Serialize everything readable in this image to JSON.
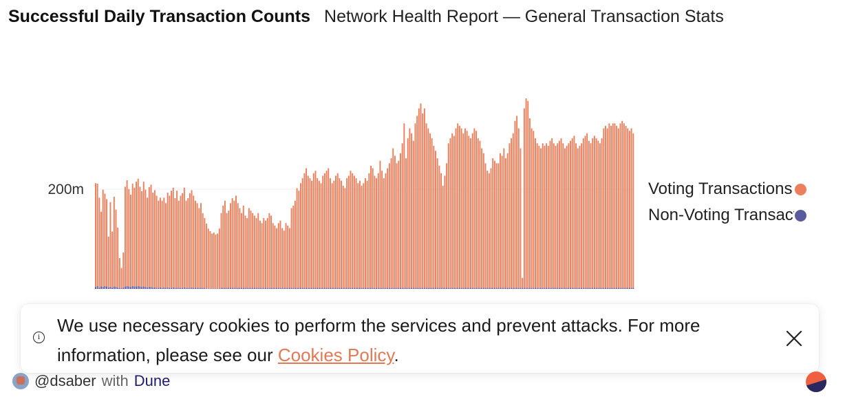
{
  "header": {
    "title": "Successful Daily Transaction Counts",
    "subtitle": "Network Health Report — General Transaction Stats"
  },
  "legend": [
    {
      "label": "Voting Transactions",
      "color": "#ec7f5c"
    },
    {
      "label": "Non-Voting Transactions",
      "color": "#5a5a9e"
    }
  ],
  "cookie": {
    "text": "We use necessary cookies to perform the services and prevent attacks. For more information, please see our ",
    "link": "Cookies Policy",
    "suffix": ".",
    "info_icon": "info-icon",
    "close_icon": "close-icon"
  },
  "footer": {
    "handle": "@dsaber",
    "with": "with",
    "brand": "Dune",
    "avatar_icon": "avatar-icon",
    "logo_icon": "dune-logo-icon"
  },
  "chart_data": {
    "type": "bar",
    "stacked": true,
    "ytick_labels": [
      "200m"
    ],
    "ylim": [
      0,
      400
    ],
    "grid": true,
    "legend_position": "right",
    "series": [
      {
        "name": "Voting Transactions",
        "color": "#ec7f5c",
        "values": [
          208,
          205,
          180,
          150,
          195,
          185,
          175,
          102,
          170,
          112,
          180,
          155,
          120,
          60,
          40,
          70,
          200,
          212,
          195,
          185,
          205,
          198,
          210,
          215,
          200,
          192,
          210,
          195,
          180,
          200,
          205,
          190,
          195,
          185,
          175,
          180,
          175,
          180,
          170,
          190,
          185,
          195,
          200,
          180,
          195,
          175,
          185,
          190,
          200,
          175,
          180,
          190,
          195,
          185,
          175,
          170,
          160,
          170,
          150,
          140,
          130,
          120,
          115,
          110,
          112,
          108,
          110,
          120,
          150,
          165,
          175,
          150,
          155,
          170,
          180,
          175,
          185,
          170,
          160,
          150,
          165,
          145,
          140,
          160,
          155,
          150,
          145,
          140,
          150,
          135,
          130,
          140,
          135,
          140,
          150,
          145,
          130,
          125,
          120,
          130,
          135,
          120,
          115,
          130,
          125,
          120,
          160,
          165,
          175,
          200,
          195,
          210,
          220,
          230,
          240,
          225,
          220,
          215,
          230,
          235,
          220,
          215,
          210,
          225,
          230,
          235,
          240,
          220,
          210,
          215,
          225,
          230,
          220,
          215,
          205,
          200,
          220,
          225,
          235,
          230,
          225,
          220,
          210,
          215,
          205,
          210,
          220,
          215,
          230,
          245,
          240,
          225,
          220,
          230,
          255,
          235,
          220,
          230,
          240,
          250,
          260,
          280,
          265,
          250,
          255,
          270,
          290,
          330,
          260,
          300,
          320,
          310,
          295,
          330,
          345,
          360,
          370,
          350,
          360,
          330,
          320,
          310,
          300,
          285,
          275,
          260,
          245,
          230,
          205,
          225,
          250,
          290,
          300,
          310,
          305,
          320,
          330,
          325,
          320,
          310,
          320,
          315,
          305,
          300,
          310,
          320,
          315,
          300,
          295,
          280,
          270,
          250,
          235,
          230,
          240,
          260,
          255,
          250,
          250,
          270,
          265,
          280,
          260,
          270,
          290,
          300,
          310,
          335,
          345,
          320,
          280,
          20,
          360,
          380,
          375,
          340,
          320,
          315,
          300,
          290,
          285,
          280,
          290,
          285,
          290,
          285,
          295,
          300,
          290,
          285,
          290,
          295,
          300,
          290,
          280,
          285,
          290,
          295,
          300,
          305,
          290,
          280,
          285,
          290,
          300,
          305,
          310,
          295,
          290,
          300,
          305,
          300,
          295,
          290,
          300,
          320,
          325,
          320,
          330,
          325,
          330,
          330,
          325,
          320,
          330,
          335,
          330,
          325,
          320,
          315,
          320,
          310
        ]
      },
      {
        "name": "Non-Voting Transactions",
        "color": "#5a5a9e",
        "values": [
          4,
          6,
          3,
          5,
          4,
          6,
          5,
          3,
          4,
          3,
          5,
          4,
          3,
          2,
          2,
          3,
          5,
          6,
          5,
          4,
          6,
          5,
          5,
          6,
          5,
          4,
          5,
          4,
          3,
          4,
          4,
          3,
          3,
          2,
          2,
          3,
          2,
          3,
          2,
          3,
          2,
          2,
          3,
          2,
          2,
          2,
          2,
          2,
          3,
          2,
          2,
          2,
          3,
          2,
          2,
          2,
          2,
          2,
          2,
          2,
          1,
          1,
          1,
          1,
          1,
          1,
          1,
          1,
          2,
          2,
          2,
          2,
          2,
          2,
          2,
          2,
          2,
          2,
          2,
          2,
          2,
          2,
          2,
          2,
          2,
          2,
          2,
          2,
          2,
          2,
          2,
          2,
          2,
          2,
          2,
          2,
          2,
          2,
          2,
          2,
          2,
          2,
          2,
          2,
          2,
          2,
          2,
          2,
          2,
          2,
          2,
          2,
          2,
          2,
          2,
          2,
          2,
          2,
          2,
          2,
          2,
          2,
          2,
          2,
          2,
          2,
          2,
          2,
          2,
          2,
          2,
          2,
          2,
          2,
          2,
          2,
          2,
          2,
          2,
          2,
          2,
          2,
          2,
          2,
          2,
          2,
          2,
          2,
          2,
          2,
          2,
          2,
          2,
          2,
          2,
          2,
          2,
          2,
          2,
          2,
          2,
          2,
          2,
          2,
          2,
          2,
          2,
          2,
          2,
          2,
          2,
          2,
          2,
          2,
          2,
          2,
          2,
          2,
          2,
          2,
          2,
          2,
          2,
          2,
          2,
          2,
          2,
          2,
          2,
          2,
          2,
          2,
          2,
          2,
          2,
          2,
          2,
          2,
          2,
          2,
          2,
          2,
          2,
          2,
          2,
          2,
          2,
          2,
          2,
          2,
          2,
          2,
          2,
          2,
          2,
          2,
          2,
          2,
          2,
          2,
          2,
          2,
          2,
          2,
          2,
          2,
          2,
          2,
          2,
          2,
          2,
          2,
          2,
          2,
          2,
          2,
          2,
          2,
          2,
          2,
          2,
          2,
          2,
          2,
          2,
          2,
          2,
          2,
          2,
          2,
          2,
          2,
          2,
          2,
          2,
          2,
          2,
          2,
          2,
          2,
          2,
          2,
          2,
          2,
          2,
          2,
          2,
          2,
          2,
          2,
          2,
          2,
          2,
          2,
          2,
          2,
          2,
          2,
          2,
          2,
          2,
          2,
          2,
          2,
          2,
          2,
          2,
          2,
          2,
          2,
          2,
          2,
          2,
          2,
          2,
          2,
          2,
          2,
          2,
          2,
          2,
          2,
          2,
          2,
          2
        ]
      }
    ]
  }
}
